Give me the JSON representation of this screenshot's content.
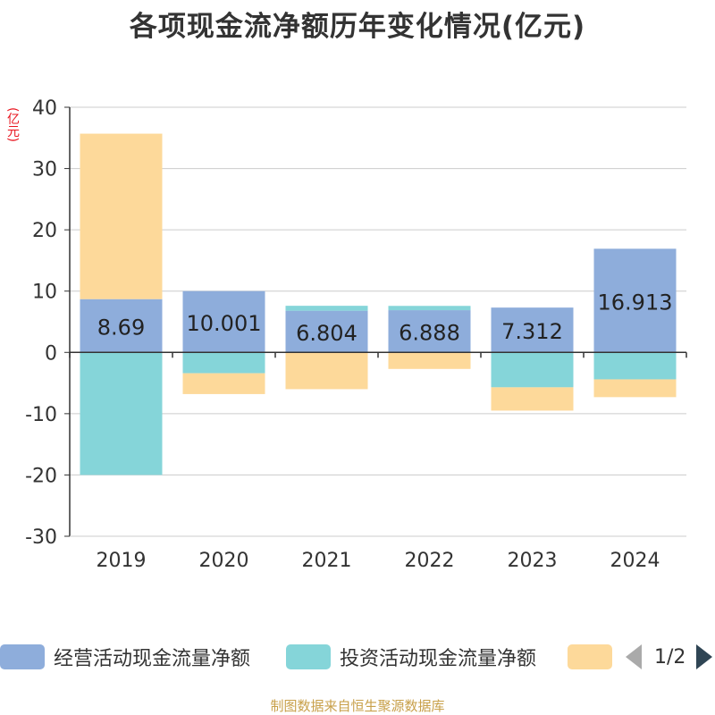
{
  "title": "各项现金流净额历年变化情况(亿元)",
  "unit_label": "(亿元)",
  "source": "制图数据来自恒生聚源数据库",
  "pager": {
    "text": "1/2"
  },
  "colors": {
    "operating": "#8eaddb",
    "investing": "#85d5d9",
    "financing": "#fdd99a",
    "grid": "#cccccc",
    "axis": "#333333",
    "unit": "#e8141e"
  },
  "legend": [
    {
      "name": "经营活动现金流量净额",
      "color": "#8eaddb"
    },
    {
      "name": "投资活动现金流量净额",
      "color": "#85d5d9"
    },
    {
      "name": "",
      "color": "#fdd99a"
    }
  ],
  "chart_data": {
    "type": "bar",
    "stacked": true,
    "categories": [
      "2019",
      "2020",
      "2021",
      "2022",
      "2023",
      "2024"
    ],
    "ylim": [
      -30,
      40
    ],
    "yticks": [
      40,
      30,
      20,
      10,
      0,
      -10,
      -20,
      -30
    ],
    "grid": true,
    "legend_position": "bottom",
    "series": [
      {
        "name": "经营活动现金流量净额",
        "values": [
          8.69,
          10.001,
          6.804,
          6.888,
          7.312,
          16.913
        ],
        "labels": [
          "8.69",
          "10.001",
          "6.804",
          "6.888",
          "7.312",
          "16.913"
        ]
      },
      {
        "name": "投资活动现金流量净额",
        "values": [
          -20.0,
          -3.4,
          0.8,
          0.7,
          -5.7,
          -4.4
        ]
      },
      {
        "values": [
          27.0,
          -3.4,
          -6.0,
          -2.7,
          -3.8,
          -2.9
        ]
      }
    ]
  }
}
